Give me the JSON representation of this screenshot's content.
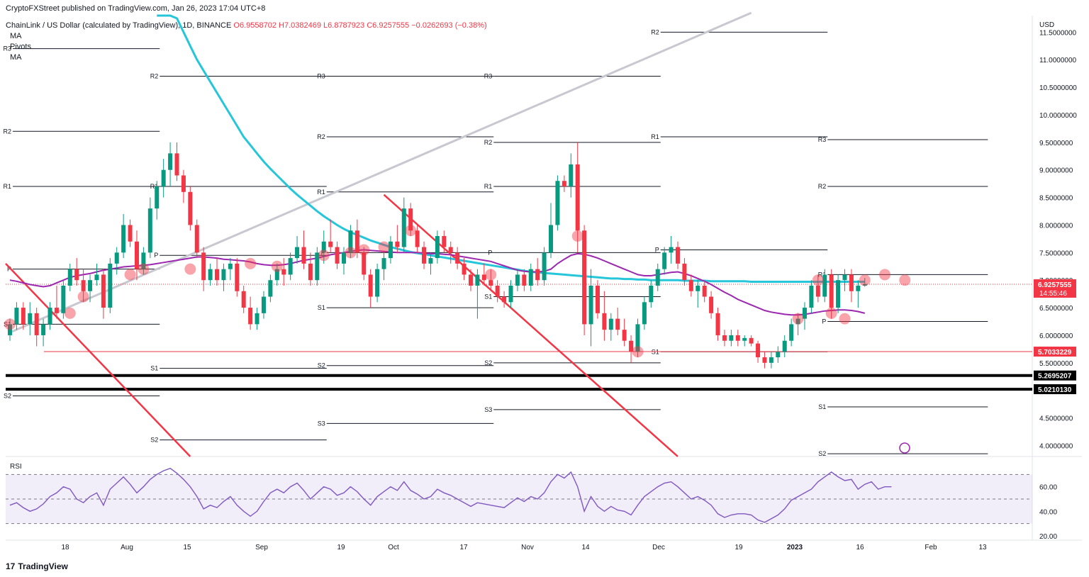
{
  "publisher": "CryptoFXStreet published on TradingView.com, Jan 26, 2023 17:04 UTC+8",
  "symbol_line": "ChainLink / US Dollar (calculated by TradingView), 1D, BINANCE",
  "ohlc": {
    "o": "O6.9558702",
    "h": "H7.0382469",
    "l": "L6.8787923",
    "c": "C6.9257555",
    "chg": "−0.0262693 (−0.38%)"
  },
  "studies": [
    "MA",
    "Pivots",
    "MA"
  ],
  "currency": "USD",
  "brand": "TradingView",
  "rsi_label": "RSI",
  "colors": {
    "up": "#089981",
    "down": "#f23645",
    "ma_fast": "#9c27b0",
    "ma_slow": "#26c6da",
    "trend_up": "#c8c8d0",
    "trend_down": "#f23645",
    "pivot": "#131722",
    "highlight": "#f23645"
  },
  "chart_data": {
    "type": "candlestick",
    "y_axis": {
      "min": 3.8,
      "max": 11.8,
      "ticks": [
        "11.5000000",
        "11.0000000",
        "10.5000000",
        "10.0000000",
        "9.5000000",
        "9.0000000",
        "8.5000000",
        "8.0000000",
        "7.5000000",
        "7.0000000",
        "6.5000000",
        "6.0000000",
        "5.5000000",
        "4.5000000",
        "4.0000000"
      ]
    },
    "x_axis": {
      "labels": [
        "18",
        "Aug",
        "15",
        "Sep",
        "19",
        "Oct",
        "17",
        "Nov",
        "14",
        "Dec",
        "19",
        "2023",
        "16",
        "Feb",
        "13"
      ]
    },
    "price_labels": [
      {
        "text": "6.9257555",
        "value": 6.9257555,
        "sub": "14:55:46",
        "style": "red"
      },
      {
        "text": "5.7033229",
        "value": 5.7033229,
        "style": "red"
      },
      {
        "text": "5.2695207",
        "value": 5.2695207,
        "style": "black"
      },
      {
        "text": "5.0210130",
        "value": 5.021013,
        "style": "black"
      }
    ],
    "support_lines": [
      5.7033229,
      5.2695207,
      5.021013
    ],
    "last_price": 6.9257555,
    "candles": [
      [
        6.0,
        6.3,
        5.9,
        6.2
      ],
      [
        6.2,
        6.6,
        6.1,
        6.5
      ],
      [
        6.5,
        6.6,
        6.1,
        6.2
      ],
      [
        6.2,
        6.6,
        6.0,
        6.4
      ],
      [
        6.4,
        6.5,
        5.8,
        6.0
      ],
      [
        6.0,
        6.3,
        5.8,
        6.2
      ],
      [
        6.2,
        6.6,
        6.1,
        6.5
      ],
      [
        6.5,
        6.9,
        6.3,
        6.4
      ],
      [
        6.4,
        7.0,
        6.3,
        6.9
      ],
      [
        6.9,
        7.3,
        6.8,
        7.2
      ],
      [
        7.2,
        7.4,
        6.9,
        7.0
      ],
      [
        7.0,
        7.2,
        6.6,
        6.8
      ],
      [
        6.8,
        7.1,
        6.6,
        7.0
      ],
      [
        7.0,
        7.3,
        6.9,
        7.1
      ],
      [
        7.1,
        7.2,
        6.3,
        6.5
      ],
      [
        6.5,
        7.4,
        6.4,
        7.3
      ],
      [
        7.3,
        7.6,
        7.1,
        7.5
      ],
      [
        7.5,
        8.2,
        7.4,
        8.0
      ],
      [
        8.0,
        8.1,
        7.6,
        7.7
      ],
      [
        7.7,
        7.9,
        7.0,
        7.2
      ],
      [
        7.2,
        7.6,
        7.1,
        7.5
      ],
      [
        7.5,
        8.5,
        7.4,
        8.3
      ],
      [
        8.3,
        8.8,
        8.1,
        8.7
      ],
      [
        8.7,
        9.2,
        8.5,
        9.0
      ],
      [
        9.0,
        9.5,
        8.7,
        9.3
      ],
      [
        9.3,
        9.5,
        8.8,
        8.9
      ],
      [
        8.9,
        9.0,
        8.4,
        8.6
      ],
      [
        8.6,
        8.7,
        7.9,
        8.0
      ],
      [
        8.0,
        8.1,
        7.4,
        7.5
      ],
      [
        7.5,
        7.6,
        6.8,
        7.0
      ],
      [
        7.0,
        7.3,
        6.9,
        7.2
      ],
      [
        7.2,
        7.4,
        6.9,
        7.0
      ],
      [
        7.0,
        7.3,
        6.8,
        7.2
      ],
      [
        7.2,
        7.4,
        7.0,
        7.3
      ],
      [
        7.3,
        7.4,
        6.7,
        6.8
      ],
      [
        6.8,
        6.9,
        6.4,
        6.5
      ],
      [
        6.5,
        6.7,
        6.1,
        6.2
      ],
      [
        6.2,
        6.5,
        6.1,
        6.4
      ],
      [
        6.4,
        6.8,
        6.3,
        6.7
      ],
      [
        6.7,
        7.1,
        6.6,
        7.0
      ],
      [
        7.0,
        7.3,
        6.9,
        7.2
      ],
      [
        7.2,
        7.4,
        6.9,
        7.1
      ],
      [
        7.1,
        7.5,
        7.0,
        7.4
      ],
      [
        7.4,
        7.8,
        7.3,
        7.6
      ],
      [
        7.6,
        7.9,
        7.2,
        7.3
      ],
      [
        7.3,
        7.5,
        6.9,
        7.0
      ],
      [
        7.0,
        7.6,
        6.9,
        7.5
      ],
      [
        7.5,
        7.9,
        7.3,
        7.7
      ],
      [
        7.7,
        8.1,
        7.5,
        7.6
      ],
      [
        7.6,
        7.7,
        7.2,
        7.3
      ],
      [
        7.3,
        7.6,
        7.1,
        7.5
      ],
      [
        7.5,
        8.0,
        7.4,
        7.9
      ],
      [
        7.9,
        8.1,
        7.4,
        7.5
      ],
      [
        7.5,
        7.6,
        7.0,
        7.1
      ],
      [
        7.1,
        7.2,
        6.5,
        6.7
      ],
      [
        6.7,
        7.3,
        6.6,
        7.2
      ],
      [
        7.2,
        7.5,
        7.0,
        7.4
      ],
      [
        7.4,
        7.8,
        7.3,
        7.7
      ],
      [
        7.7,
        8.0,
        7.5,
        7.6
      ],
      [
        7.6,
        8.5,
        7.5,
        8.3
      ],
      [
        8.3,
        8.4,
        7.8,
        7.9
      ],
      [
        7.9,
        8.0,
        7.5,
        7.6
      ],
      [
        7.6,
        7.7,
        7.2,
        7.3
      ],
      [
        7.3,
        7.5,
        7.1,
        7.4
      ],
      [
        7.4,
        7.9,
        7.3,
        7.8
      ],
      [
        7.8,
        7.9,
        7.5,
        7.6
      ],
      [
        7.6,
        7.7,
        7.3,
        7.5
      ],
      [
        7.5,
        7.6,
        7.2,
        7.3
      ],
      [
        7.3,
        7.4,
        7.0,
        7.1
      ],
      [
        7.1,
        7.2,
        6.8,
        6.9
      ],
      [
        6.9,
        7.2,
        6.3,
        7.1
      ],
      [
        7.1,
        7.3,
        6.9,
        7.0
      ],
      [
        7.0,
        7.2,
        6.8,
        6.9
      ],
      [
        6.9,
        7.0,
        6.6,
        6.7
      ],
      [
        6.7,
        6.8,
        6.5,
        6.6
      ],
      [
        6.6,
        7.0,
        6.5,
        6.9
      ],
      [
        6.9,
        7.2,
        6.8,
        7.1
      ],
      [
        7.1,
        7.2,
        6.8,
        6.9
      ],
      [
        6.9,
        7.3,
        6.8,
        7.2
      ],
      [
        7.2,
        7.4,
        6.9,
        7.0
      ],
      [
        7.0,
        7.6,
        6.9,
        7.5
      ],
      [
        7.5,
        8.4,
        7.4,
        8.0
      ],
      [
        8.0,
        8.9,
        7.9,
        8.8
      ],
      [
        8.8,
        8.9,
        8.6,
        8.7
      ],
      [
        8.7,
        9.3,
        8.5,
        9.1
      ],
      [
        9.1,
        9.5,
        7.5,
        7.9
      ],
      [
        7.9,
        8.0,
        6.0,
        6.2
      ],
      [
        6.2,
        7.2,
        5.8,
        6.9
      ],
      [
        6.9,
        7.0,
        6.3,
        6.4
      ],
      [
        6.4,
        6.8,
        5.9,
        6.1
      ],
      [
        6.1,
        6.4,
        5.9,
        6.3
      ],
      [
        6.3,
        6.5,
        6.0,
        6.1
      ],
      [
        6.1,
        6.3,
        5.8,
        5.9
      ],
      [
        5.9,
        6.0,
        5.5,
        5.7
      ],
      [
        5.7,
        6.3,
        5.6,
        6.2
      ],
      [
        6.2,
        6.7,
        6.1,
        6.6
      ],
      [
        6.6,
        7.0,
        6.5,
        6.9
      ],
      [
        6.9,
        7.3,
        6.8,
        7.2
      ],
      [
        7.2,
        7.6,
        7.1,
        7.5
      ],
      [
        7.5,
        7.8,
        7.3,
        7.6
      ],
      [
        7.6,
        7.7,
        7.2,
        7.3
      ],
      [
        7.3,
        7.4,
        6.9,
        7.0
      ],
      [
        7.0,
        7.1,
        6.7,
        6.8
      ],
      [
        6.8,
        7.0,
        6.5,
        6.9
      ],
      [
        6.9,
        7.0,
        6.6,
        6.7
      ],
      [
        6.7,
        6.8,
        6.3,
        6.4
      ],
      [
        6.4,
        6.5,
        5.9,
        6.0
      ],
      [
        6.0,
        6.1,
        5.8,
        5.9
      ],
      [
        5.9,
        6.1,
        5.8,
        6.0
      ],
      [
        6.0,
        6.1,
        5.8,
        5.9
      ],
      [
        5.9,
        6.0,
        5.8,
        5.95
      ],
      [
        5.95,
        6.0,
        5.8,
        5.85
      ],
      [
        5.85,
        5.9,
        5.5,
        5.6
      ],
      [
        5.6,
        5.7,
        5.4,
        5.5
      ],
      [
        5.5,
        5.7,
        5.4,
        5.6
      ],
      [
        5.6,
        5.8,
        5.5,
        5.7
      ],
      [
        5.7,
        6.0,
        5.6,
        5.9
      ],
      [
        5.9,
        6.3,
        5.8,
        6.2
      ],
      [
        6.2,
        6.4,
        6.0,
        6.3
      ],
      [
        6.3,
        6.6,
        6.1,
        6.5
      ],
      [
        6.5,
        7.0,
        6.4,
        6.9
      ],
      [
        6.9,
        7.1,
        6.6,
        6.7
      ],
      [
        6.7,
        7.2,
        6.6,
        7.1
      ],
      [
        7.1,
        7.2,
        6.3,
        6.5
      ],
      [
        6.5,
        7.1,
        6.4,
        7.0
      ],
      [
        7.0,
        7.2,
        6.8,
        7.1
      ],
      [
        7.1,
        7.2,
        6.6,
        6.8
      ],
      [
        6.8,
        7.0,
        6.5,
        6.9
      ],
      [
        6.9,
        7.04,
        6.88,
        6.93
      ]
    ],
    "ma_fast": [
      7.0,
      6.98,
      6.95,
      6.92,
      6.9,
      6.88,
      6.9,
      6.95,
      7.0,
      7.05,
      7.08,
      7.1,
      7.12,
      7.15,
      7.18,
      7.2,
      7.22,
      7.24,
      7.25,
      7.26,
      7.27,
      7.28,
      7.3,
      7.32,
      7.34,
      7.36,
      7.38,
      7.4,
      7.42,
      7.42,
      7.41,
      7.4,
      7.38,
      7.37,
      7.36,
      7.35,
      7.33,
      7.3,
      7.28,
      7.27,
      7.27,
      7.28,
      7.3,
      7.33,
      7.36,
      7.38,
      7.4,
      7.43,
      7.46,
      7.48,
      7.5,
      7.52,
      7.54,
      7.55,
      7.54,
      7.53,
      7.52,
      7.51,
      7.5,
      7.5,
      7.5,
      7.5,
      7.49,
      7.48,
      7.48,
      7.47,
      7.46,
      7.44,
      7.42,
      7.4,
      7.38,
      7.36,
      7.34,
      7.3,
      7.26,
      7.22,
      7.18,
      7.16,
      7.15,
      7.15,
      7.16,
      7.2,
      7.3,
      7.38,
      7.45,
      7.48,
      7.47,
      7.44,
      7.4,
      7.35,
      7.3,
      7.25,
      7.2,
      7.15,
      7.1,
      7.08,
      7.08,
      7.1,
      7.12,
      7.14,
      7.15,
      7.12,
      7.08,
      7.03,
      6.98,
      6.92,
      6.85,
      6.78,
      6.72,
      6.65,
      6.6,
      6.55,
      6.5,
      6.45,
      6.42,
      6.4,
      6.38,
      6.37,
      6.37,
      6.38,
      6.4,
      6.42,
      6.44,
      6.45,
      6.46,
      6.46,
      6.45,
      6.43,
      6.4
    ],
    "ma_slow": [
      null,
      null,
      null,
      null,
      null,
      null,
      null,
      null,
      null,
      null,
      null,
      null,
      null,
      null,
      null,
      null,
      null,
      null,
      null,
      null,
      null,
      null,
      12.2,
      12.1,
      11.95,
      11.75,
      11.5,
      11.25,
      11.0,
      10.8,
      10.6,
      10.4,
      10.2,
      10.0,
      9.8,
      9.6,
      9.45,
      9.3,
      9.15,
      9.02,
      8.9,
      8.78,
      8.66,
      8.55,
      8.45,
      8.35,
      8.25,
      8.16,
      8.08,
      8.0,
      7.93,
      7.87,
      7.82,
      7.77,
      7.72,
      7.68,
      7.64,
      7.6,
      7.57,
      7.54,
      7.51,
      7.49,
      7.47,
      7.45,
      7.43,
      7.41,
      7.39,
      7.37,
      7.35,
      7.33,
      7.31,
      7.29,
      7.27,
      7.25,
      7.23,
      7.21,
      7.19,
      7.17,
      7.15,
      7.14,
      7.13,
      7.12,
      7.11,
      7.1,
      7.09,
      7.08,
      7.07,
      7.06,
      7.05,
      7.04,
      7.03,
      7.03,
      7.02,
      7.02,
      7.01,
      7.01,
      7.0,
      7.0,
      7.0,
      7.0,
      7.0,
      6.99,
      6.99,
      6.99,
      6.99,
      6.98,
      6.98,
      6.98,
      6.98,
      6.98,
      6.98,
      6.97,
      6.97,
      6.97,
      6.97,
      6.97,
      6.97,
      6.97,
      6.97,
      6.97,
      6.97,
      6.97,
      6.97,
      6.97,
      6.97,
      6.97,
      6.97,
      6.97,
      6.97
    ],
    "pivots": [
      {
        "x0": 0,
        "x1": 22,
        "levels": [
          [
            "P",
            7.2
          ],
          [
            "R1",
            8.7
          ],
          [
            "R2",
            9.7
          ],
          [
            "R3",
            11.2
          ],
          [
            "S1",
            6.2
          ],
          [
            "S2",
            4.9
          ]
        ]
      },
      {
        "x0": 22,
        "x1": 47,
        "levels": [
          [
            "P",
            7.45
          ],
          [
            "R1",
            8.7
          ],
          [
            "R2",
            10.7
          ],
          [
            "S1",
            5.4
          ],
          [
            "S2",
            4.1
          ]
        ]
      },
      {
        "x0": 47,
        "x1": 72,
        "levels": [
          [
            "P",
            7.5
          ],
          [
            "R1",
            8.6
          ],
          [
            "R2",
            9.6
          ],
          [
            "R3",
            10.7
          ],
          [
            "S1",
            6.5
          ],
          [
            "S2",
            5.45
          ],
          [
            "S3",
            4.4
          ]
        ]
      },
      {
        "x0": 72,
        "x1": 97,
        "levels": [
          [
            "P",
            7.5
          ],
          [
            "R1",
            8.7
          ],
          [
            "R2",
            9.5
          ],
          [
            "R3",
            10.7
          ],
          [
            "S1",
            6.7
          ],
          [
            "S2",
            5.5
          ],
          [
            "S3",
            4.65
          ]
        ]
      },
      {
        "x0": 97,
        "x1": 122,
        "levels": [
          [
            "P",
            7.55
          ],
          [
            "R1",
            9.6
          ],
          [
            "R2",
            11.5
          ],
          [
            "S1",
            5.7
          ]
        ]
      },
      {
        "x0": 122,
        "x1": 146,
        "levels": [
          [
            "P",
            6.25
          ],
          [
            "R1",
            7.1
          ],
          [
            "R2",
            8.7
          ],
          [
            "R3",
            9.55
          ],
          [
            "S1",
            4.7
          ],
          [
            "S2",
            3.85
          ]
        ]
      }
    ],
    "rsi": {
      "ticks": [
        "60.00",
        "40.00",
        "20.00"
      ],
      "range": [
        20,
        80
      ],
      "band": [
        30,
        70
      ],
      "values": [
        45,
        47,
        43,
        40,
        42,
        46,
        52,
        55,
        60,
        58,
        50,
        47,
        52,
        55,
        45,
        58,
        63,
        68,
        62,
        55,
        60,
        66,
        70,
        73,
        75,
        71,
        66,
        60,
        52,
        42,
        45,
        43,
        48,
        52,
        45,
        40,
        36,
        40,
        48,
        55,
        58,
        55,
        60,
        63,
        57,
        50,
        55,
        60,
        58,
        53,
        55,
        60,
        56,
        50,
        45,
        52,
        56,
        60,
        57,
        64,
        57,
        54,
        50,
        52,
        58,
        55,
        53,
        50,
        47,
        44,
        47,
        46,
        45,
        44,
        43,
        47,
        51,
        48,
        52,
        50,
        55,
        64,
        70,
        67,
        72,
        60,
        40,
        52,
        44,
        40,
        44,
        41,
        40,
        37,
        45,
        52,
        56,
        60,
        63,
        64,
        60,
        55,
        50,
        52,
        49,
        45,
        38,
        35,
        37,
        38,
        38,
        37,
        33,
        31,
        34,
        37,
        42,
        49,
        52,
        55,
        58,
        64,
        68,
        72,
        68,
        65,
        66,
        58,
        62,
        64,
        58,
        60,
        60
      ],
      "dates_step": 1
    },
    "highlights": [
      [
        0,
        6.2
      ],
      [
        9,
        6.4
      ],
      [
        11,
        6.7
      ],
      [
        18,
        7.1
      ],
      [
        20,
        7.2
      ],
      [
        27,
        7.2
      ],
      [
        36,
        7.3
      ],
      [
        40,
        7.25
      ],
      [
        47,
        7.45
      ],
      [
        51,
        7.5
      ],
      [
        53,
        7.55
      ],
      [
        56,
        7.6
      ],
      [
        60,
        7.9
      ],
      [
        72,
        7.1
      ],
      [
        85,
        7.8
      ],
      [
        94,
        5.7
      ],
      [
        118,
        6.3
      ],
      [
        121,
        7.0
      ],
      [
        123,
        6.4
      ],
      [
        125,
        6.3
      ],
      [
        128,
        7.0
      ],
      [
        131,
        7.1
      ],
      [
        134,
        7.0
      ]
    ]
  }
}
